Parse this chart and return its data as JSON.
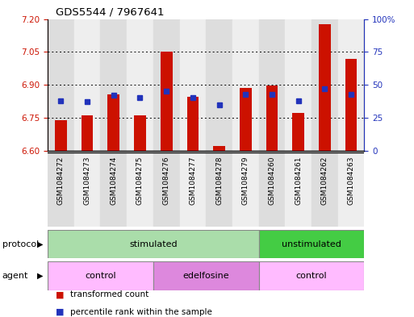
{
  "title": "GDS5544 / 7967641",
  "samples": [
    "GSM1084272",
    "GSM1084273",
    "GSM1084274",
    "GSM1084275",
    "GSM1084276",
    "GSM1084277",
    "GSM1084278",
    "GSM1084279",
    "GSM1084260",
    "GSM1084261",
    "GSM1084262",
    "GSM1084263"
  ],
  "bar_values": [
    6.74,
    6.76,
    6.855,
    6.76,
    7.05,
    6.845,
    6.62,
    6.885,
    6.895,
    6.77,
    7.175,
    7.02
  ],
  "percentile_values": [
    38,
    37,
    42,
    40,
    45,
    40,
    35,
    43,
    43,
    38,
    47,
    43
  ],
  "ylim_left": [
    6.6,
    7.2
  ],
  "ylim_right": [
    0,
    100
  ],
  "yticks_left": [
    6.6,
    6.75,
    6.9,
    7.05,
    7.2
  ],
  "yticks_right": [
    0,
    25,
    50,
    75,
    100
  ],
  "grid_lines": [
    6.75,
    6.9,
    7.05
  ],
  "bar_color": "#cc1100",
  "dot_color": "#2233bb",
  "bar_bottom": 6.6,
  "col_bg_odd": "#dddddd",
  "col_bg_even": "#eeeeee",
  "protocol_groups": [
    {
      "label": "stimulated",
      "start": 0,
      "end": 8,
      "color": "#aaddaa"
    },
    {
      "label": "unstimulated",
      "start": 8,
      "end": 12,
      "color": "#44cc44"
    }
  ],
  "agent_groups": [
    {
      "label": "control",
      "start": 0,
      "end": 4,
      "color": "#ffbbff"
    },
    {
      "label": "edelfosine",
      "start": 4,
      "end": 8,
      "color": "#dd88dd"
    },
    {
      "label": "control",
      "start": 8,
      "end": 12,
      "color": "#ffbbff"
    }
  ],
  "legend_items": [
    {
      "label": "transformed count",
      "color": "#cc1100"
    },
    {
      "label": "percentile rank within the sample",
      "color": "#2233bb"
    }
  ],
  "left_tick_color": "#cc1100",
  "right_tick_color": "#2233bb",
  "bg_color": "#ffffff",
  "protocol_label": "protocol",
  "agent_label": "agent"
}
